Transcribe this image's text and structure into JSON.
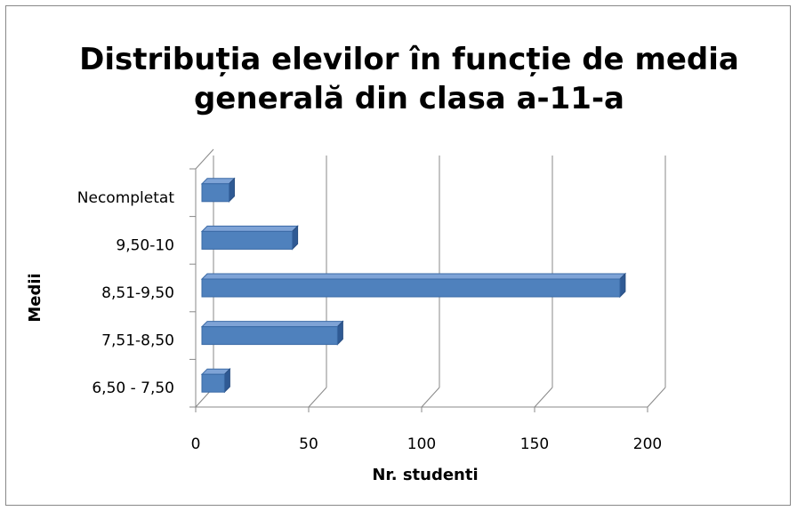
{
  "chart_data": {
    "type": "bar",
    "orientation": "horizontal",
    "title": "Distribuția elevilor în funcție de media generală din clasa a-11-a",
    "categories": [
      "6,50 - 7,50",
      "7,51-8,50",
      "8,51-9,50",
      "9,50-10",
      "Necompletat"
    ],
    "values": [
      10,
      60,
      185,
      40,
      12
    ],
    "color": "#4f81bd",
    "x_label": "Nr. studenti",
    "y_label": "Medii",
    "xlim": [
      0,
      200
    ],
    "xticks": [
      0,
      50,
      100,
      150,
      200
    ],
    "grid": true
  }
}
